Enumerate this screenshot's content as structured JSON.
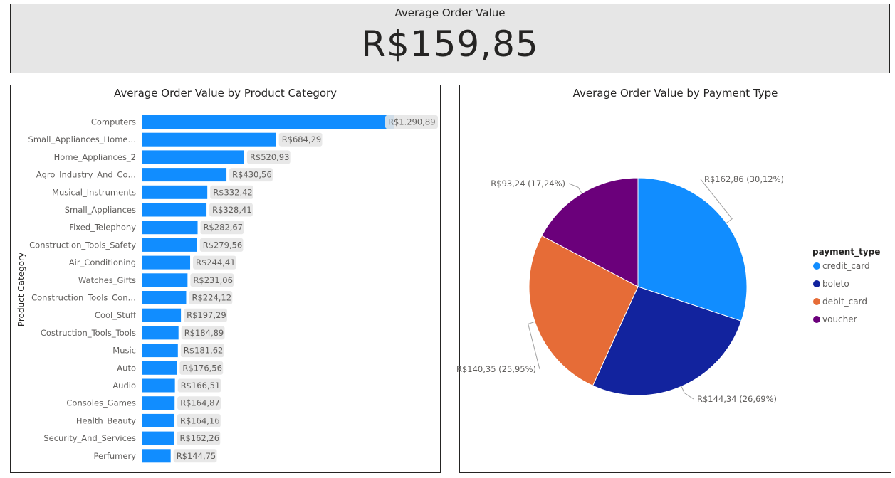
{
  "kpi": {
    "title": "Average Order Value",
    "value": "R$159,85"
  },
  "chart_data": [
    {
      "type": "bar",
      "orientation": "horizontal",
      "title": "Average Order Value by Product Category",
      "ylabel": "Product Category",
      "xlabel": "",
      "xlim": [
        0,
        1290.89
      ],
      "bar_color": "#118dff",
      "categories": [
        "Computers",
        "Small_Appliances_Home…",
        "Home_Appliances_2",
        "Agro_Industry_And_Co…",
        "Musical_Instruments",
        "Small_Appliances",
        "Fixed_Telephony",
        "Construction_Tools_Safety",
        "Air_Conditioning",
        "Watches_Gifts",
        "Construction_Tools_Con…",
        "Cool_Stuff",
        "Costruction_Tools_Tools",
        "Music",
        "Auto",
        "Audio",
        "Consoles_Games",
        "Health_Beauty",
        "Security_And_Services",
        "Perfumery"
      ],
      "values": [
        1290.89,
        684.29,
        520.93,
        430.56,
        332.42,
        328.41,
        282.67,
        279.56,
        244.41,
        231.06,
        224.12,
        197.29,
        184.89,
        181.62,
        176.56,
        166.51,
        164.87,
        164.16,
        162.26,
        144.75
      ],
      "data_labels": [
        "R$1.290,89",
        "R$684,29",
        "R$520,93",
        "R$430,56",
        "R$332,42",
        "R$328,41",
        "R$282,67",
        "R$279,56",
        "R$244,41",
        "R$231,06",
        "R$224,12",
        "R$197,29",
        "R$184,89",
        "R$181,62",
        "R$176,56",
        "R$166,51",
        "R$164,87",
        "R$164,16",
        "R$162,26",
        "R$144,75"
      ]
    },
    {
      "type": "pie",
      "title": "Average Order Value by Payment Type",
      "legend_title": "payment_type",
      "legend_position": "right",
      "slices": [
        {
          "name": "credit_card",
          "value": 162.86,
          "percent": 30.12,
          "label": "R$162,86 (30,12%)",
          "color": "#118dff"
        },
        {
          "name": "boleto",
          "value": 144.34,
          "percent": 26.69,
          "label": "R$144,34 (26,69%)",
          "color": "#12239e"
        },
        {
          "name": "debit_card",
          "value": 140.35,
          "percent": 25.95,
          "label": "R$140,35 (25,95%)",
          "color": "#e66c37"
        },
        {
          "name": "voucher",
          "value": 93.24,
          "percent": 17.24,
          "label": "R$93,24 (17,24%)",
          "color": "#6b007b"
        }
      ]
    }
  ]
}
